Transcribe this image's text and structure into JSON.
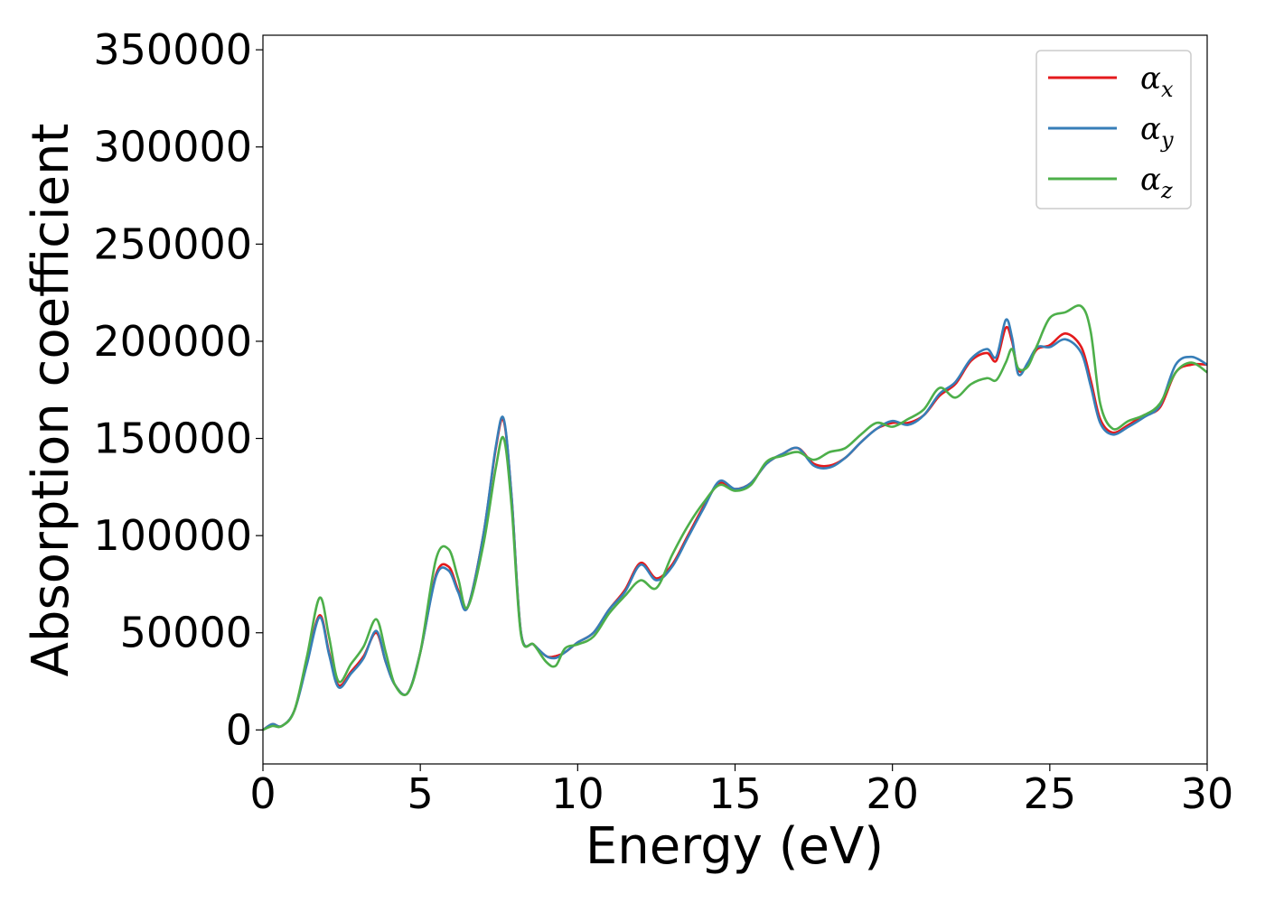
{
  "chart_data": {
    "type": "line",
    "title": "",
    "xlabel": "Energy (eV)",
    "ylabel": "Absorption coefficient",
    "xlim": [
      0,
      30
    ],
    "ylim": [
      -17500,
      357500
    ],
    "xticks": [
      "0",
      "5",
      "10",
      "15",
      "20",
      "25",
      "30"
    ],
    "xtick_values": [
      0,
      5,
      10,
      15,
      20,
      25,
      30
    ],
    "yticks": [
      "0",
      "50000",
      "100000",
      "150000",
      "200000",
      "250000",
      "300000",
      "350000"
    ],
    "ytick_values": [
      0,
      50000,
      100000,
      150000,
      200000,
      250000,
      300000,
      350000
    ],
    "grid": false,
    "legend_position": "top-right",
    "x": [
      0,
      0.3,
      0.6,
      1.0,
      1.4,
      1.8,
      2.1,
      2.4,
      2.8,
      3.2,
      3.6,
      3.9,
      4.2,
      4.6,
      5.0,
      5.5,
      5.9,
      6.2,
      6.5,
      7.0,
      7.4,
      7.65,
      7.9,
      8.2,
      8.6,
      9.0,
      9.3,
      9.6,
      10.0,
      10.5,
      11.0,
      11.5,
      12.0,
      12.5,
      13.0,
      13.5,
      14.0,
      14.5,
      15.0,
      15.5,
      16.0,
      16.5,
      17.0,
      17.5,
      18.0,
      18.5,
      19.0,
      19.5,
      20.0,
      20.5,
      21.0,
      21.5,
      22.0,
      22.5,
      23.0,
      23.3,
      23.6,
      23.8,
      24.0,
      24.3,
      24.6,
      25.0,
      25.5,
      26.0,
      26.3,
      26.6,
      27.0,
      27.5,
      28.0,
      28.5,
      29.0,
      29.5,
      30.0
    ],
    "series": [
      {
        "name": "x",
        "color": "#e41a1c",
        "values": [
          0,
          3000,
          2000,
          10000,
          35000,
          59000,
          40000,
          23000,
          30000,
          38000,
          50000,
          35000,
          23000,
          19000,
          40000,
          80000,
          84000,
          72000,
          63000,
          100000,
          145000,
          159000,
          120000,
          50000,
          44000,
          38000,
          38000,
          40000,
          45000,
          50000,
          62000,
          72000,
          86000,
          78000,
          85000,
          100000,
          115000,
          127000,
          124000,
          127000,
          137000,
          142000,
          145000,
          137000,
          136000,
          140000,
          148000,
          155000,
          158000,
          158000,
          162000,
          172000,
          178000,
          190000,
          194000,
          190000,
          207000,
          200000,
          185000,
          188000,
          196000,
          198000,
          204000,
          197000,
          180000,
          160000,
          153000,
          157000,
          162000,
          166000,
          184000,
          188000,
          188000
        ]
      },
      {
        "name": "y",
        "color": "#377eb8",
        "values": [
          0,
          3000,
          2000,
          10000,
          34000,
          58000,
          39000,
          22000,
          29000,
          37000,
          51000,
          35000,
          23000,
          19000,
          40000,
          79000,
          82000,
          71000,
          63000,
          100000,
          146000,
          160000,
          120000,
          50000,
          44000,
          38000,
          37000,
          40000,
          45000,
          50000,
          62000,
          71000,
          85000,
          77000,
          84000,
          99000,
          114000,
          128000,
          124000,
          127000,
          137000,
          142000,
          145000,
          136000,
          135000,
          140000,
          148000,
          155000,
          159000,
          157000,
          162000,
          173000,
          179000,
          191000,
          196000,
          192000,
          211000,
          202000,
          183000,
          189000,
          197000,
          197000,
          201000,
          194000,
          177000,
          158000,
          152000,
          156000,
          161000,
          167000,
          188000,
          192000,
          188000
        ]
      },
      {
        "name": "z",
        "color": "#4daf4a",
        "values": [
          0,
          2000,
          2000,
          10000,
          38000,
          68000,
          48000,
          25000,
          34000,
          43000,
          57000,
          40000,
          23000,
          19000,
          40000,
          88000,
          93000,
          78000,
          63000,
          95000,
          135000,
          150000,
          115000,
          49000,
          44000,
          35000,
          33000,
          42000,
          44000,
          48000,
          60000,
          69000,
          77000,
          73000,
          90000,
          105000,
          117000,
          126000,
          123000,
          126000,
          138000,
          141000,
          143000,
          139000,
          143000,
          145000,
          152000,
          158000,
          156000,
          160000,
          165000,
          176000,
          171000,
          178000,
          181000,
          180000,
          189000,
          196000,
          186000,
          187000,
          198000,
          212000,
          215000,
          218000,
          205000,
          168000,
          155000,
          159000,
          162000,
          168000,
          184000,
          189000,
          184000
        ]
      }
    ]
  }
}
